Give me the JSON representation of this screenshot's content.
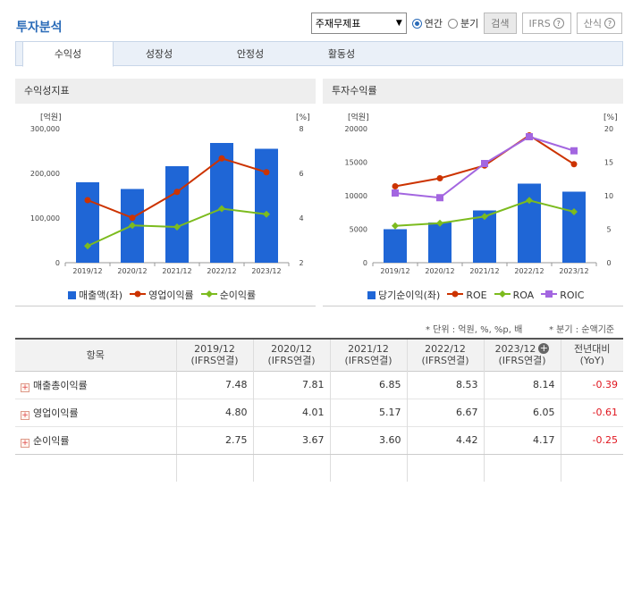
{
  "page": {
    "title": "투자분석"
  },
  "toolbar": {
    "select_value": "주재무제표",
    "radio_annual": "연간",
    "radio_quarter": "분기",
    "search_label": "검색",
    "ifrs_label": "IFRS",
    "formula_label": "산식"
  },
  "tabs": [
    {
      "label": "수익성"
    },
    {
      "label": "성장성"
    },
    {
      "label": "안정성"
    },
    {
      "label": "활동성"
    }
  ],
  "panels": {
    "left_title": "수익성지표",
    "right_title": "투자수익률"
  },
  "chart_data": [
    {
      "type": "bar",
      "title": "수익성지표",
      "categories": [
        "2019/12",
        "2020/12",
        "2021/12",
        "2022/12",
        "2023/12"
      ],
      "left_unit": "[억원]",
      "right_unit": "[%]",
      "ylim_left": [
        0,
        300000
      ],
      "yticks_left": [
        "0",
        "100,000",
        "200,000",
        "300,000"
      ],
      "ylim_right": [
        2,
        8
      ],
      "yticks_right": [
        "2",
        "4",
        "6",
        "8"
      ],
      "bar_color": "#1f66d6",
      "series": [
        {
          "name": "매출액(좌)",
          "kind": "bar",
          "axis": "left",
          "color": "#1f66d6",
          "values": [
            180000,
            165000,
            216000,
            268000,
            255000
          ]
        },
        {
          "name": "영업이익률",
          "kind": "line",
          "axis": "right",
          "color": "#cc3300",
          "values": [
            4.8,
            4.01,
            5.17,
            6.67,
            6.05
          ]
        },
        {
          "name": "순이익률",
          "kind": "line",
          "axis": "right",
          "color": "#7cbb1e",
          "values": [
            2.75,
            3.67,
            3.6,
            4.42,
            4.17
          ]
        }
      ],
      "legend_position": "bottom"
    },
    {
      "type": "bar",
      "title": "투자수익률",
      "categories": [
        "2019/12",
        "2020/12",
        "2021/12",
        "2022/12",
        "2023/12"
      ],
      "left_unit": "[억원]",
      "right_unit": "[%]",
      "ylim_left": [
        0,
        20000
      ],
      "yticks_left": [
        "0",
        "5000",
        "10000",
        "15000",
        "20000"
      ],
      "ylim_right": [
        0,
        20
      ],
      "yticks_right": [
        "0",
        "5",
        "10",
        "15",
        "20"
      ],
      "series": [
        {
          "name": "당기순이익(좌)",
          "kind": "bar",
          "axis": "left",
          "color": "#1f66d6",
          "values": [
            5000,
            6000,
            7800,
            11800,
            10600
          ]
        },
        {
          "name": "ROE",
          "kind": "line",
          "axis": "right",
          "color": "#cc3300",
          "values": [
            11.4,
            12.6,
            14.5,
            19.0,
            14.7
          ]
        },
        {
          "name": "ROA",
          "kind": "line",
          "axis": "right",
          "color": "#7cbb1e",
          "values": [
            5.5,
            5.9,
            6.9,
            9.3,
            7.6
          ]
        },
        {
          "name": "ROIC",
          "kind": "line",
          "axis": "right",
          "color": "#a366e0",
          "values": [
            10.4,
            9.7,
            14.8,
            18.8,
            16.7
          ]
        }
      ],
      "legend_position": "bottom"
    }
  ],
  "notes": {
    "unit": "* 단위 : 억원, %, %p, 배",
    "quarter": "* 분기 : 순액기준"
  },
  "table": {
    "headers": [
      {
        "line1": "항목",
        "line2": ""
      },
      {
        "line1": "2019/12",
        "line2": "(IFRS연결)"
      },
      {
        "line1": "2020/12",
        "line2": "(IFRS연결)"
      },
      {
        "line1": "2021/12",
        "line2": "(IFRS연결)"
      },
      {
        "line1": "2022/12",
        "line2": "(IFRS연결)"
      },
      {
        "line1": "2023/12",
        "line2": "(IFRS연결)"
      },
      {
        "line1": "전년대비",
        "line2": "(YoY)"
      }
    ],
    "rows": [
      {
        "label": "매출총이익률",
        "values": [
          "7.48",
          "7.81",
          "6.85",
          "8.53",
          "8.14"
        ],
        "yoy": "-0.39"
      },
      {
        "label": "영업이익률",
        "values": [
          "4.80",
          "4.01",
          "5.17",
          "6.67",
          "6.05"
        ],
        "yoy": "-0.61"
      },
      {
        "label": "순이익률",
        "values": [
          "2.75",
          "3.67",
          "3.60",
          "4.42",
          "4.17"
        ],
        "yoy": "-0.25"
      }
    ]
  }
}
